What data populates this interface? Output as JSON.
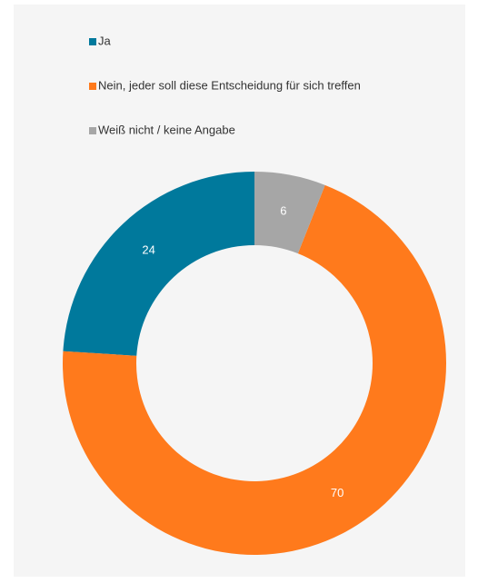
{
  "chart_data": {
    "type": "donut",
    "categories": [
      "Ja",
      "Nein, jeder soll diese Entscheidung für sich treffen",
      "Weiß nicht / keine Angabe"
    ],
    "values": [
      24,
      70,
      6
    ],
    "colors": [
      "#00799c",
      "#ff7a1c",
      "#a6a6a6"
    ],
    "direction": "counterclockwise",
    "legend": "top-left"
  }
}
